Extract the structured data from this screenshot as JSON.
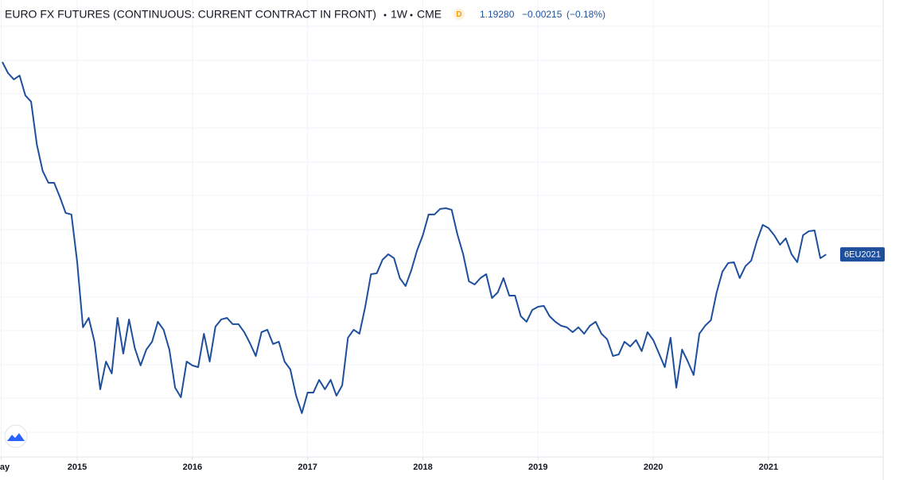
{
  "header": {
    "symbol": "EURO FX FUTURES (CONTINUOUS: CURRENT CONTRACT IN FRONT)",
    "interval": "1W",
    "exchange": "CME",
    "badge": "D",
    "price": "1.19280",
    "change": "−0.00215",
    "change_pct": "(−0.18%)"
  },
  "chart_data": {
    "type": "line",
    "x": [
      2014.35,
      2014.4,
      2014.45,
      2014.5,
      2014.55,
      2014.6,
      2014.65,
      2014.7,
      2014.75,
      2014.8,
      2014.85,
      2014.9,
      2014.95,
      2015.0,
      2015.05,
      2015.1,
      2015.15,
      2015.2,
      2015.25,
      2015.3,
      2015.35,
      2015.4,
      2015.45,
      2015.5,
      2015.55,
      2015.6,
      2015.65,
      2015.7,
      2015.75,
      2015.8,
      2015.85,
      2015.9,
      2015.95,
      2016.0,
      2016.05,
      2016.1,
      2016.15,
      2016.2,
      2016.25,
      2016.3,
      2016.35,
      2016.4,
      2016.45,
      2016.5,
      2016.55,
      2016.6,
      2016.65,
      2016.7,
      2016.75,
      2016.8,
      2016.85,
      2016.9,
      2016.95,
      2017.0,
      2017.05,
      2017.1,
      2017.15,
      2017.2,
      2017.25,
      2017.3,
      2017.35,
      2017.4,
      2017.45,
      2017.5,
      2017.55,
      2017.6,
      2017.65,
      2017.7,
      2017.75,
      2017.8,
      2017.85,
      2017.9,
      2017.95,
      2018.0,
      2018.05,
      2018.1,
      2018.15,
      2018.2,
      2018.25,
      2018.3,
      2018.35,
      2018.4,
      2018.45,
      2018.5,
      2018.55,
      2018.6,
      2018.65,
      2018.7,
      2018.75,
      2018.8,
      2018.85,
      2018.9,
      2018.95,
      2019.0,
      2019.05,
      2019.1,
      2019.15,
      2019.2,
      2019.25,
      2019.3,
      2019.35,
      2019.4,
      2019.45,
      2019.5,
      2019.55,
      2019.6,
      2019.65,
      2019.7,
      2019.75,
      2019.8,
      2019.85,
      2019.9,
      2019.95,
      2020.0,
      2020.05,
      2020.1,
      2020.15,
      2020.2,
      2020.25,
      2020.3,
      2020.35,
      2020.4,
      2020.45,
      2020.5,
      2020.55,
      2020.6,
      2020.65,
      2020.7,
      2020.75,
      2020.8,
      2020.85,
      2020.9,
      2020.95,
      2021.0,
      2021.05,
      2021.1,
      2021.15,
      2021.2,
      2021.25,
      2021.3,
      2021.35,
      2021.4,
      2021.45,
      2021.5
    ],
    "series": [
      {
        "name": "6EU2021",
        "color": "#1e4f9c",
        "values": [
          1.376,
          1.3654,
          1.3594,
          1.3631,
          1.3442,
          1.3382,
          1.2973,
          1.2724,
          1.261,
          1.261,
          1.2474,
          1.2323,
          1.2308,
          1.1854,
          1.1234,
          1.1324,
          1.1097,
          1.0644,
          1.0908,
          1.0795,
          1.1324,
          1.0984,
          1.1309,
          1.1037,
          1.0871,
          1.1022,
          1.1097,
          1.1287,
          1.1211,
          1.1022,
          1.0659,
          1.0568,
          1.0908,
          1.0871,
          1.0855,
          1.1173,
          1.0908,
          1.1241,
          1.1309,
          1.1324,
          1.1264,
          1.1264,
          1.1188,
          1.1082,
          1.0961,
          1.1188,
          1.1211,
          1.1075,
          1.1097,
          1.0908,
          1.0833,
          1.0583,
          1.0417,
          1.0613,
          1.0613,
          1.0734,
          1.0644,
          1.0734,
          1.0583,
          1.0681,
          1.1135,
          1.1211,
          1.1173,
          1.143,
          1.174,
          1.1748,
          1.1877,
          1.193,
          1.1892,
          1.1703,
          1.1627,
          1.1778,
          1.1967,
          1.2111,
          1.2308,
          1.2308,
          1.2361,
          1.2368,
          1.2353,
          1.2119,
          1.193,
          1.1672,
          1.1642,
          1.1703,
          1.174,
          1.1513,
          1.1566,
          1.1703,
          1.1536,
          1.1536,
          1.134,
          1.1287,
          1.14,
          1.143,
          1.1438,
          1.134,
          1.1287,
          1.1249,
          1.1234,
          1.1188,
          1.1234,
          1.1173,
          1.1249,
          1.1287,
          1.1173,
          1.112,
          1.0961,
          1.0976,
          1.1097,
          1.1052,
          1.1113,
          1.1007,
          1.1188,
          1.1113,
          1.0984,
          1.0855,
          1.1135,
          1.0659,
          1.1022,
          1.0908,
          1.078,
          1.1173,
          1.1249,
          1.1302,
          1.1566,
          1.1763,
          1.1846,
          1.1854,
          1.1703,
          1.1816,
          1.1869,
          1.2058,
          1.2209,
          1.2179,
          1.2111,
          1.202,
          1.2081,
          1.193,
          1.1854,
          1.2111,
          1.2149,
          1.2156,
          1.1892,
          1.1928
        ]
      }
    ],
    "xlim": [
      2014.33,
      2021.995
    ],
    "xticks": [
      {
        "value": 2014.34,
        "label": "May"
      },
      2015,
      2016,
      2017,
      2018,
      2019,
      2020,
      2021
    ],
    "ylim": [
      1.0,
      1.435
    ],
    "grid": true
  }
}
